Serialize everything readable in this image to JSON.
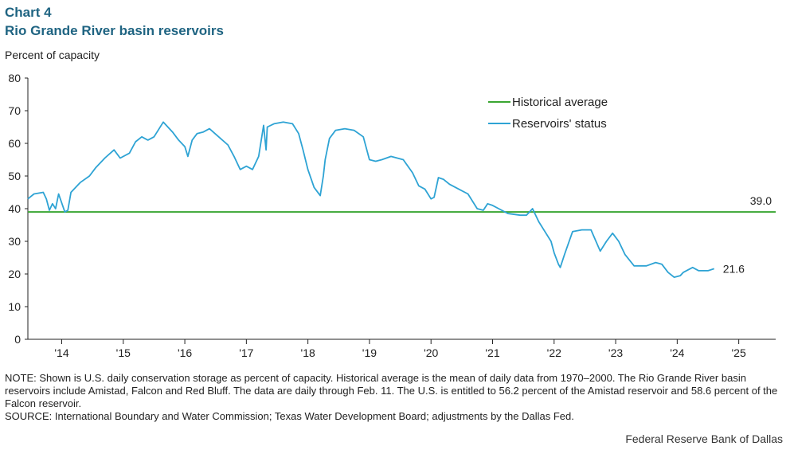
{
  "header": {
    "chart_number": "Chart 4",
    "title": "Rio Grande River basin reservoirs"
  },
  "footer": {
    "note": "NOTE: Shown is U.S. daily conservation storage as percent of capacity. Historical average is the mean of daily data from 1970–2000. The Rio Grande River basin reservoirs include Amistad, Falcon and Red Bluff. The data are daily through Feb. 11. The U.S. is entitled to 56.2 percent of the Amistad reservoir and 58.6 percent of the Falcon reservoir.",
    "source": "SOURCE: International  Boundary and Water Commission; Texas Water Development Board; adjustments by the Dallas Fed.",
    "credit": "Federal Reserve Bank of Dallas"
  },
  "colors": {
    "title": "#1f6482",
    "historical": "#3aa632",
    "historical_label": "#3f8a2a",
    "reservoir": "#2ea3d4",
    "reservoir_label": "#4aa8d8",
    "axis": "#222222"
  },
  "chart_data": {
    "type": "line",
    "ylabel": "Percent of capacity",
    "ylim": [
      0,
      80
    ],
    "yticks": [
      "0",
      "10",
      "20",
      "30",
      "40",
      "50",
      "60",
      "70",
      "80"
    ],
    "xlim": [
      2013.45,
      2025.6
    ],
    "xtick_labels": [
      "'14",
      "'15",
      "'16",
      "'17",
      "'18",
      "'19",
      "'20",
      "'21",
      "'22",
      "'23",
      "'24",
      "'25"
    ],
    "legend": [
      "Historical average",
      "Reservoirs' status"
    ],
    "series": [
      {
        "name": "Historical average",
        "value": 39.0,
        "value_label": "39.0",
        "x": [
          2013.45,
          2025.6
        ],
        "y": [
          39.0,
          39.0
        ]
      },
      {
        "name": "Reservoirs' status",
        "last_value_label": "21.6",
        "x": [
          2013.45,
          2013.55,
          2013.7,
          2013.75,
          2013.8,
          2013.85,
          2013.9,
          2013.95,
          2014.05,
          2014.1,
          2014.15,
          2014.3,
          2014.45,
          2014.55,
          2014.7,
          2014.85,
          2014.95,
          2015.1,
          2015.2,
          2015.3,
          2015.4,
          2015.5,
          2015.65,
          2015.8,
          2015.9,
          2016.0,
          2016.05,
          2016.12,
          2016.2,
          2016.3,
          2016.4,
          2016.55,
          2016.7,
          2016.8,
          2016.9,
          2017.0,
          2017.1,
          2017.2,
          2017.28,
          2017.32,
          2017.34,
          2017.45,
          2017.6,
          2017.75,
          2017.85,
          2017.92,
          2018.0,
          2018.1,
          2018.2,
          2018.25,
          2018.28,
          2018.35,
          2018.45,
          2018.6,
          2018.75,
          2018.9,
          2019.0,
          2019.1,
          2019.2,
          2019.35,
          2019.55,
          2019.7,
          2019.8,
          2019.9,
          2020.0,
          2020.05,
          2020.12,
          2020.2,
          2020.3,
          2020.45,
          2020.6,
          2020.75,
          2020.85,
          2020.92,
          2021.0,
          2021.1,
          2021.25,
          2021.45,
          2021.55,
          2021.65,
          2021.75,
          2021.85,
          2021.95,
          2022.0,
          2022.07,
          2022.1,
          2022.17,
          2022.3,
          2022.45,
          2022.6,
          2022.75,
          2022.85,
          2022.95,
          2023.05,
          2023.15,
          2023.3,
          2023.5,
          2023.65,
          2023.75,
          2023.85,
          2023.95,
          2024.05,
          2024.1,
          2024.25,
          2024.35,
          2024.5,
          2024.6
        ],
        "y": [
          43.0,
          44.5,
          45.0,
          43.0,
          39.5,
          41.5,
          40.0,
          44.5,
          39.0,
          39.5,
          45.0,
          48.0,
          50.0,
          52.5,
          55.5,
          58.0,
          55.5,
          57.0,
          60.5,
          62.0,
          61.0,
          62.0,
          66.5,
          63.5,
          61.0,
          59.0,
          56.0,
          61.0,
          63.0,
          63.5,
          64.5,
          62.0,
          59.5,
          56.0,
          52.0,
          53.0,
          52.0,
          56.0,
          65.5,
          58.0,
          65.0,
          66.0,
          66.5,
          66.0,
          63.0,
          58.0,
          52.0,
          46.5,
          44.0,
          50.0,
          55.0,
          61.5,
          64.0,
          64.5,
          64.0,
          62.0,
          55.0,
          54.5,
          55.0,
          56.0,
          55.0,
          51.0,
          47.0,
          46.0,
          43.0,
          43.5,
          49.5,
          49.0,
          47.5,
          46.0,
          44.5,
          40.0,
          39.5,
          41.5,
          41.0,
          40.0,
          38.5,
          38.0,
          38.0,
          40.0,
          36.0,
          33.0,
          30.0,
          26.5,
          23.0,
          22.0,
          26.0,
          33.0,
          33.5,
          33.5,
          27.0,
          30.0,
          32.5,
          30.0,
          26.0,
          22.5,
          22.5,
          23.5,
          23.0,
          20.5,
          19.0,
          19.5,
          20.5,
          22.0,
          21.0,
          21.0,
          21.6
        ]
      }
    ]
  }
}
